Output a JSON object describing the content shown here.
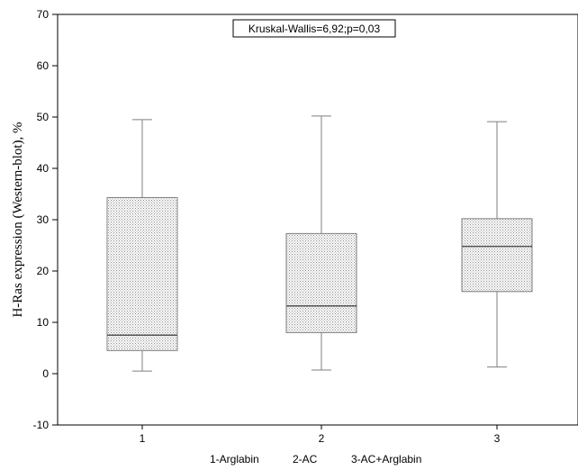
{
  "chart_data": {
    "type": "box",
    "title": "",
    "xlabel": "",
    "ylabel": "H-Ras expression (Western-blot), %",
    "ylim": [
      -10,
      70
    ],
    "yticks": [
      -10,
      0,
      10,
      20,
      30,
      40,
      50,
      60,
      70
    ],
    "categories": [
      "1",
      "2",
      "3"
    ],
    "boxes": [
      {
        "category": "1",
        "min": 0.5,
        "q1": 4.5,
        "median": 7.5,
        "q3": 34.3,
        "max": 49.5
      },
      {
        "category": "2",
        "min": 0.7,
        "q1": 8.0,
        "median": 13.2,
        "q3": 27.3,
        "max": 50.2
      },
      {
        "category": "3",
        "min": 1.3,
        "q1": 16.0,
        "median": 24.8,
        "q3": 30.2,
        "max": 49.1
      }
    ],
    "annotation": "Kruskal-Wallis=6,92;p=0,03",
    "footer_labels": [
      "1-Arglabin",
      "2-AC",
      "3-AC+Arglabin"
    ],
    "grid": false
  }
}
